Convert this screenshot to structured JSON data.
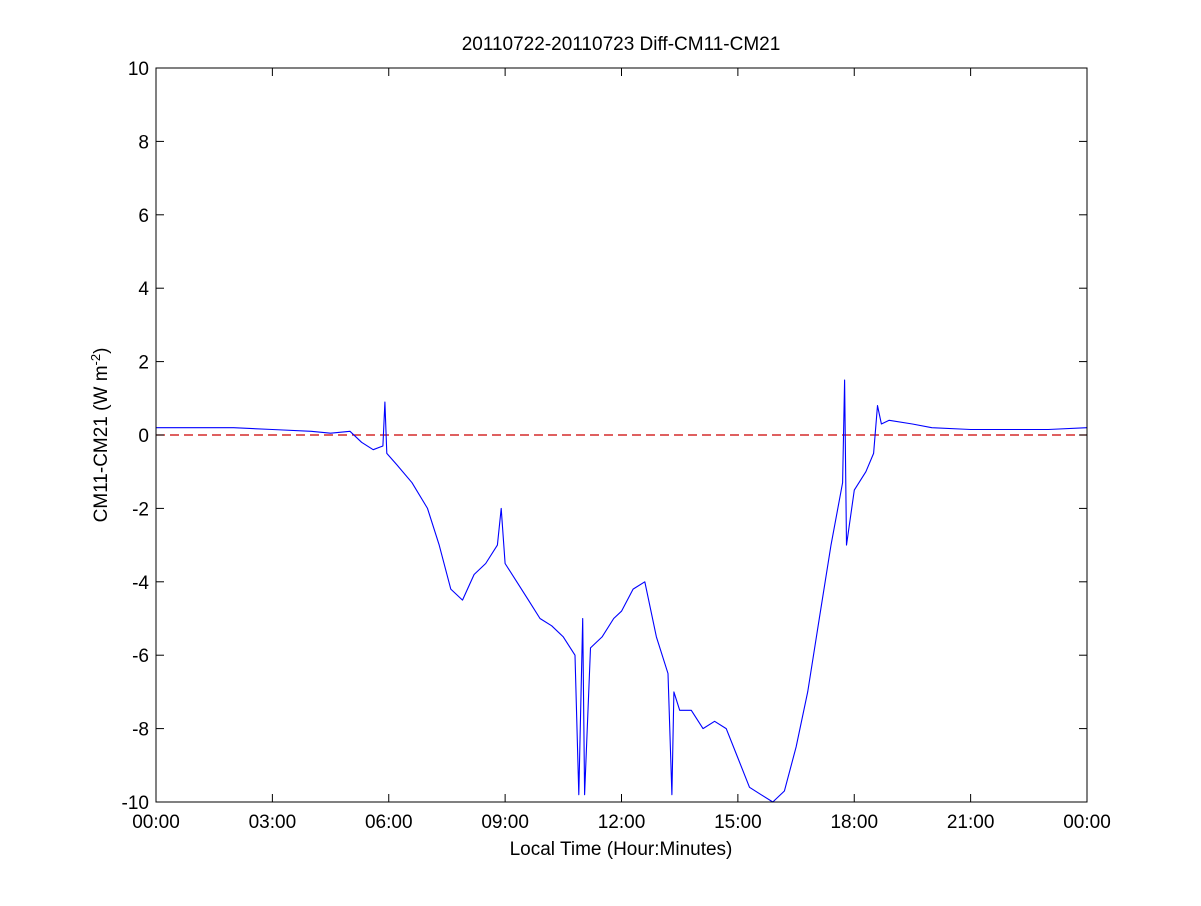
{
  "chart_data": {
    "type": "line",
    "title": "20110722-20110723 Diff-CM11-CM21",
    "xlabel": "Local Time (Hour:Minutes)",
    "ylabel_main": "CM11-CM21 (W m",
    "ylabel_sup": "-2",
    "ylabel_close": ")",
    "xlim_hours": [
      0,
      24
    ],
    "ylim": [
      -10,
      10
    ],
    "x_ticks": [
      {
        "hours": 0,
        "label": "00:00"
      },
      {
        "hours": 3,
        "label": "03:00"
      },
      {
        "hours": 6,
        "label": "06:00"
      },
      {
        "hours": 9,
        "label": "09:00"
      },
      {
        "hours": 12,
        "label": "12:00"
      },
      {
        "hours": 15,
        "label": "15:00"
      },
      {
        "hours": 18,
        "label": "18:00"
      },
      {
        "hours": 21,
        "label": "21:00"
      },
      {
        "hours": 24,
        "label": "00:00"
      }
    ],
    "y_ticks": [
      {
        "value": 10,
        "label": "10"
      },
      {
        "value": 8,
        "label": "8"
      },
      {
        "value": 6,
        "label": "6"
      },
      {
        "value": 4,
        "label": "4"
      },
      {
        "value": 2,
        "label": "2"
      },
      {
        "value": 0,
        "label": "0"
      },
      {
        "value": -2,
        "label": "-2"
      },
      {
        "value": -4,
        "label": "-4"
      },
      {
        "value": -6,
        "label": "-6"
      },
      {
        "value": -8,
        "label": "-8"
      },
      {
        "value": -10,
        "label": "-10"
      }
    ],
    "reference_line": {
      "y": 0,
      "color": "#cc0000",
      "style": "dashed"
    },
    "series": [
      {
        "color": "#0000ff",
        "x_hours": [
          0.0,
          1.0,
          2.0,
          3.0,
          4.0,
          4.5,
          5.0,
          5.3,
          5.6,
          5.85,
          5.9,
          5.95,
          6.2,
          6.6,
          7.0,
          7.3,
          7.6,
          7.9,
          8.2,
          8.5,
          8.8,
          8.9,
          9.0,
          9.3,
          9.6,
          9.9,
          10.2,
          10.5,
          10.8,
          10.9,
          11.0,
          11.05,
          11.2,
          11.5,
          11.8,
          12.0,
          12.3,
          12.6,
          12.9,
          13.2,
          13.3,
          13.35,
          13.5,
          13.8,
          14.1,
          14.4,
          14.7,
          15.0,
          15.3,
          15.6,
          15.9,
          16.2,
          16.5,
          16.8,
          17.1,
          17.4,
          17.7,
          17.75,
          17.8,
          18.0,
          18.3,
          18.5,
          18.6,
          18.7,
          18.9,
          19.5,
          20.0,
          21.0,
          22.0,
          23.0,
          24.0
        ],
        "y": [
          0.2,
          0.2,
          0.2,
          0.15,
          0.1,
          0.05,
          0.1,
          -0.2,
          -0.4,
          -0.3,
          0.9,
          -0.5,
          -0.8,
          -1.3,
          -2.0,
          -3.0,
          -4.2,
          -4.5,
          -3.8,
          -3.5,
          -3.0,
          -2.0,
          -3.5,
          -4.0,
          -4.5,
          -5.0,
          -5.2,
          -5.5,
          -6.0,
          -9.8,
          -5.0,
          -9.8,
          -5.8,
          -5.5,
          -5.0,
          -4.8,
          -4.2,
          -4.0,
          -5.5,
          -6.5,
          -9.8,
          -7.0,
          -7.5,
          -7.5,
          -8.0,
          -7.8,
          -8.0,
          -8.8,
          -9.6,
          -9.8,
          -10.0,
          -9.7,
          -8.5,
          -7.0,
          -5.0,
          -3.0,
          -1.3,
          1.5,
          -3.0,
          -1.5,
          -1.0,
          -0.5,
          0.8,
          0.3,
          0.4,
          0.3,
          0.2,
          0.15,
          0.15,
          0.15,
          0.2
        ]
      }
    ]
  }
}
